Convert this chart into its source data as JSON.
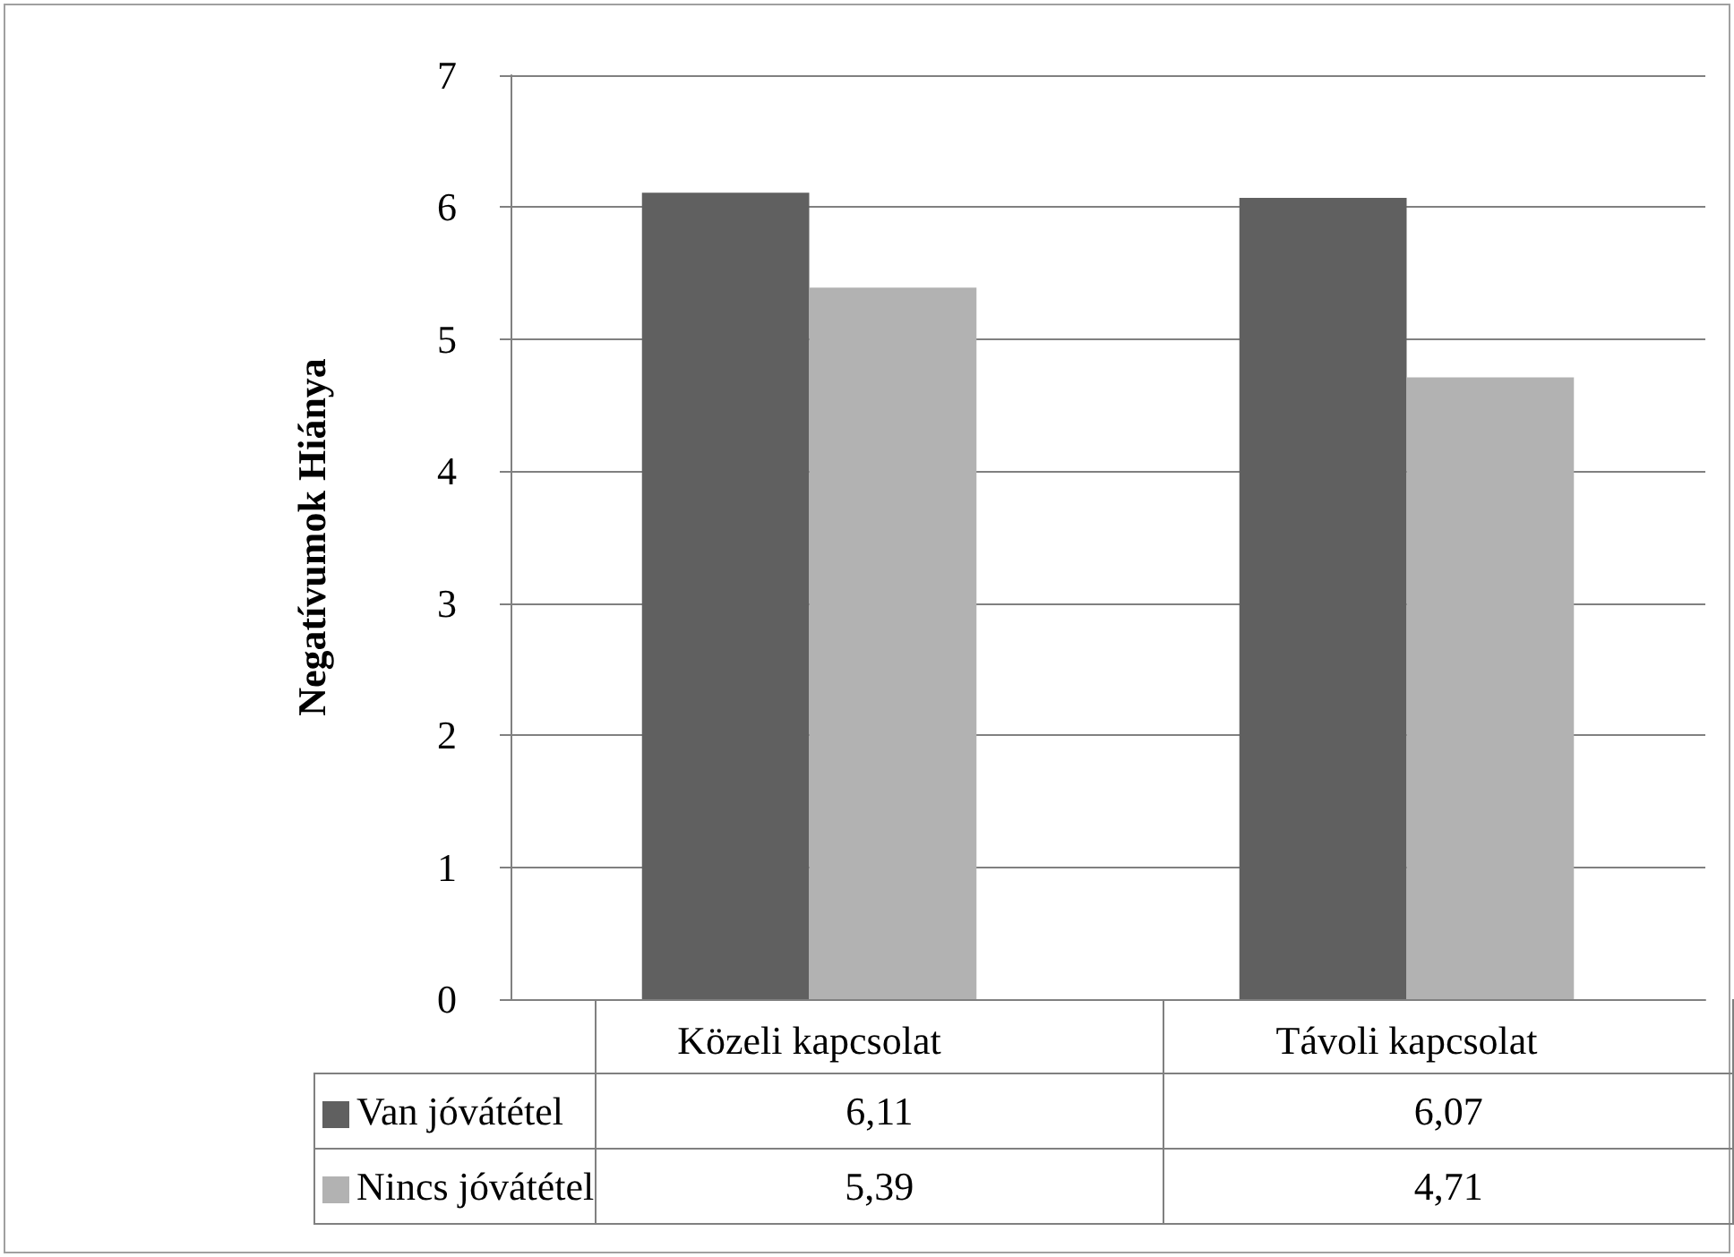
{
  "chart_data": {
    "type": "bar",
    "ylabel": "Negatívumok Hiánya",
    "categories": [
      "Közeli kapcsolat",
      "Távoli kapcsolat"
    ],
    "series": [
      {
        "name": "Van jóvátétel",
        "color": "#606060",
        "values": [
          6.11,
          6.07
        ],
        "value_labels": [
          "6,11",
          "6,07"
        ]
      },
      {
        "name": "Nincs jóvátétel",
        "color": "#b2b2b2",
        "values": [
          5.39,
          4.71
        ],
        "value_labels": [
          "5,39",
          "4,71"
        ]
      }
    ],
    "ylim": [
      0,
      7
    ],
    "yticks": [
      0,
      1,
      2,
      3,
      4,
      5,
      6,
      7
    ],
    "grid": "y",
    "legend": "bottom left"
  }
}
